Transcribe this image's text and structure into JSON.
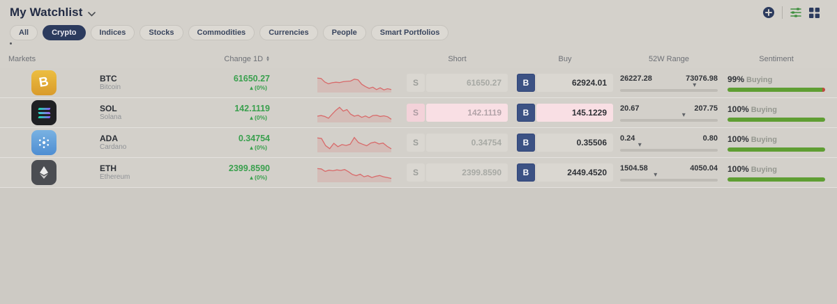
{
  "header": {
    "title": "My Watchlist",
    "action_icons": [
      {
        "name": "plus-circle-icon",
        "color": "#2c3b5e"
      },
      {
        "name": "sliders-icon",
        "color": "#3f8f3f"
      },
      {
        "name": "grid-icon",
        "color": "#2c3b5e"
      }
    ]
  },
  "filters": {
    "items": [
      {
        "label": "All",
        "selected": false
      },
      {
        "label": "Crypto",
        "selected": true
      },
      {
        "label": "Indices",
        "selected": false
      },
      {
        "label": "Stocks",
        "selected": false
      },
      {
        "label": "Commodities",
        "selected": false
      },
      {
        "label": "Currencies",
        "selected": false
      },
      {
        "label": "People",
        "selected": false
      },
      {
        "label": "Smart Portfolios",
        "selected": false
      }
    ]
  },
  "columns": {
    "markets": "Markets",
    "change": "Change 1D",
    "short": "Short",
    "buy": "Buy",
    "range": "52W Range",
    "sentiment": "Sentiment"
  },
  "labels": {
    "short_letter": "S",
    "buy_letter": "B"
  },
  "rows": [
    {
      "symbol": "BTC",
      "name": "Bitcoin",
      "icon": "bitcoin-icon",
      "change": "61650.27",
      "change_dir": "up",
      "change_pct": "(0%)",
      "short_price": "61650.27",
      "short_enabled": false,
      "buy_price": "62924.01",
      "range_low": "26227.28",
      "range_high": "73076.98",
      "range_pos": 78,
      "sentiment_pct": "99%",
      "sentiment_label": "Buying",
      "sentiment_value": 99,
      "flash": false,
      "sparkline": [
        0.85,
        0.83,
        0.6,
        0.48,
        0.55,
        0.58,
        0.56,
        0.62,
        0.64,
        0.66,
        0.78,
        0.74,
        0.45,
        0.3,
        0.18,
        0.26,
        0.1,
        0.22,
        0.08,
        0.16,
        0.1
      ]
    },
    {
      "symbol": "SOL",
      "name": "Solana",
      "icon": "solana-icon",
      "change": "142.1119",
      "change_dir": "up",
      "change_pct": "(0%)",
      "short_price": "142.1119",
      "short_enabled": true,
      "buy_price": "145.1229",
      "range_low": "20.67",
      "range_high": "207.75",
      "range_pos": 67,
      "sentiment_pct": "100%",
      "sentiment_label": "Buying",
      "sentiment_value": 100,
      "flash": true,
      "sparkline": [
        0.32,
        0.36,
        0.3,
        0.18,
        0.45,
        0.7,
        0.9,
        0.65,
        0.75,
        0.45,
        0.32,
        0.38,
        0.24,
        0.33,
        0.22,
        0.36,
        0.38,
        0.3,
        0.34,
        0.28,
        0.12
      ]
    },
    {
      "symbol": "ADA",
      "name": "Cardano",
      "icon": "cardano-icon",
      "change": "0.34754",
      "change_dir": "up",
      "change_pct": "(0%)",
      "short_price": "0.34754",
      "short_enabled": false,
      "buy_price": "0.35506",
      "range_low": "0.24",
      "range_high": "0.80",
      "range_pos": 22,
      "sentiment_pct": "100%",
      "sentiment_label": "Buying",
      "sentiment_value": 100,
      "flash": false,
      "sparkline": [
        0.85,
        0.82,
        0.35,
        0.15,
        0.5,
        0.28,
        0.42,
        0.36,
        0.44,
        0.88,
        0.55,
        0.44,
        0.34,
        0.52,
        0.58,
        0.46,
        0.52,
        0.3,
        0.14
      ]
    },
    {
      "symbol": "ETH",
      "name": "Ethereum",
      "icon": "ethereum-icon",
      "change": "2399.8590",
      "change_dir": "up",
      "change_pct": "(0%)",
      "short_price": "2399.8590",
      "short_enabled": false,
      "buy_price": "2449.4520",
      "range_low": "1504.58",
      "range_high": "4050.04",
      "range_pos": 38,
      "sentiment_pct": "100%",
      "sentiment_label": "Buying",
      "sentiment_value": 100,
      "flash": false,
      "sparkline": [
        0.8,
        0.78,
        0.62,
        0.7,
        0.66,
        0.72,
        0.68,
        0.74,
        0.6,
        0.42,
        0.34,
        0.44,
        0.27,
        0.34,
        0.22,
        0.3,
        0.35,
        0.27,
        0.22,
        0.16
      ]
    }
  ],
  "colors": {
    "accent_navy": "#2c3b5e",
    "change_green": "#3aa04e",
    "sentiment_green": "#5f9e33",
    "sell_red": "#bf4a3f",
    "flash_pink": "#f9dfe4",
    "spark_red": "#d86a6a"
  }
}
